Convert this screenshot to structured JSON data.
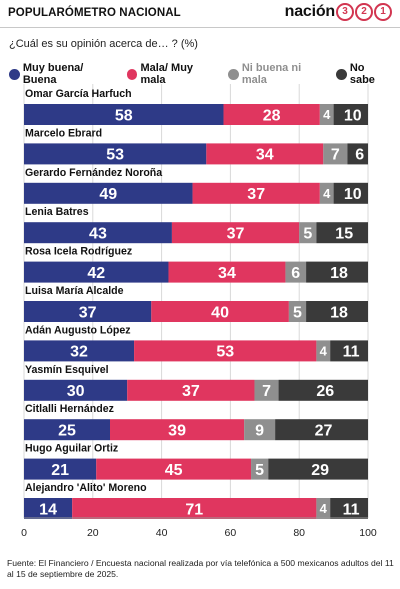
{
  "header": {
    "title": "POPULARÓMETRO NACIONAL",
    "brand_word": "nación",
    "brand_digits": [
      "3",
      "2",
      "1"
    ]
  },
  "question": "¿Cuál es su opinión acerca de… ? (%)",
  "source": "Fuente: El Financiero / Encuesta nacional realizada por vía telefónica a 500 mexicanos adultos del 11 al 15 de septiembre de 2025.",
  "colors": {
    "muy_buena_buena": "#2e3a87",
    "mala_muy_mala": "#e0365f",
    "ni_buena_ni_mala": "#8f8f8f",
    "no_sabe": "#3a3a3a"
  },
  "chart_data": {
    "type": "bar",
    "orientation": "horizontal",
    "stacked": true,
    "title": "",
    "xlabel": "",
    "ylabel": "",
    "xlim": [
      0,
      100
    ],
    "xticks": [
      0,
      20,
      40,
      60,
      80,
      100
    ],
    "grid": true,
    "legend_position": "top",
    "categories": [
      "Omar García Harfuch",
      "Marcelo Ebrard",
      "Gerardo Fernández Noroña",
      "Lenia Batres",
      "Rosa Icela Rodríguez",
      "Luisa María Alcalde",
      "Adán Augusto López",
      "Yasmín Esquivel",
      "Citlalli Hernández",
      "Hugo Aguilar Ortiz",
      "Alejandro 'Alito' Moreno"
    ],
    "series": [
      {
        "name": "Muy buena/ Buena",
        "values": [
          58,
          53,
          49,
          43,
          42,
          37,
          32,
          30,
          25,
          21,
          14
        ]
      },
      {
        "name": "Mala/ Muy mala",
        "values": [
          28,
          34,
          37,
          37,
          34,
          40,
          53,
          37,
          39,
          45,
          71
        ]
      },
      {
        "name": "Ni buena ni mala",
        "values": [
          4,
          7,
          4,
          5,
          6,
          5,
          4,
          7,
          9,
          5,
          4
        ]
      },
      {
        "name": "No sabe",
        "values": [
          10,
          6,
          10,
          15,
          18,
          18,
          11,
          26,
          27,
          29,
          11
        ]
      }
    ]
  }
}
